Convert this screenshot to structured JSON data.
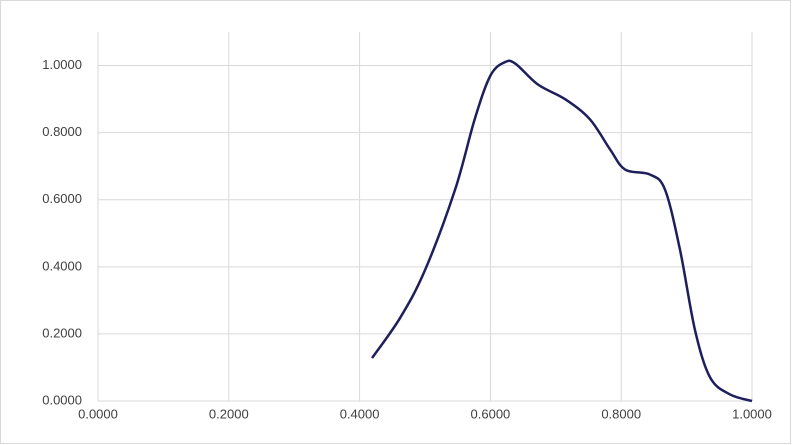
{
  "chart_data": {
    "type": "line",
    "x": [
      0.419,
      0.462,
      0.5,
      0.546,
      0.576,
      0.6,
      0.622,
      0.638,
      0.673,
      0.714,
      0.752,
      0.783,
      0.806,
      0.844,
      0.867,
      0.89,
      0.913,
      0.936,
      0.966,
      1.0
    ],
    "series": [
      {
        "color": "#1f1f5c",
        "values": [
          0.128,
          0.248,
          0.39,
          0.63,
          0.84,
          0.97,
          1.01,
          1.006,
          0.943,
          0.9,
          0.84,
          0.75,
          0.69,
          0.675,
          0.63,
          0.45,
          0.21,
          0.07,
          0.02,
          0.0
        ]
      }
    ],
    "xlim": [
      0,
      1
    ],
    "ylim": [
      0,
      1.1
    ],
    "xticks": [
      {
        "value": 0,
        "label": "0.0000"
      },
      {
        "value": 0.2,
        "label": "0.2000"
      },
      {
        "value": 0.4,
        "label": "0.4000"
      },
      {
        "value": 0.6,
        "label": "0.6000"
      },
      {
        "value": 0.8,
        "label": "0.8000"
      },
      {
        "value": 1,
        "label": "1.0000"
      }
    ],
    "yticks": [
      {
        "value": 0,
        "label": "0.0000"
      },
      {
        "value": 0.2,
        "label": "0.2000"
      },
      {
        "value": 0.4,
        "label": "0.4000"
      },
      {
        "value": 0.6,
        "label": "0.6000"
      },
      {
        "value": 0.8,
        "label": "0.8000"
      },
      {
        "value": 1,
        "label": "1.0000"
      }
    ],
    "grid": true
  }
}
